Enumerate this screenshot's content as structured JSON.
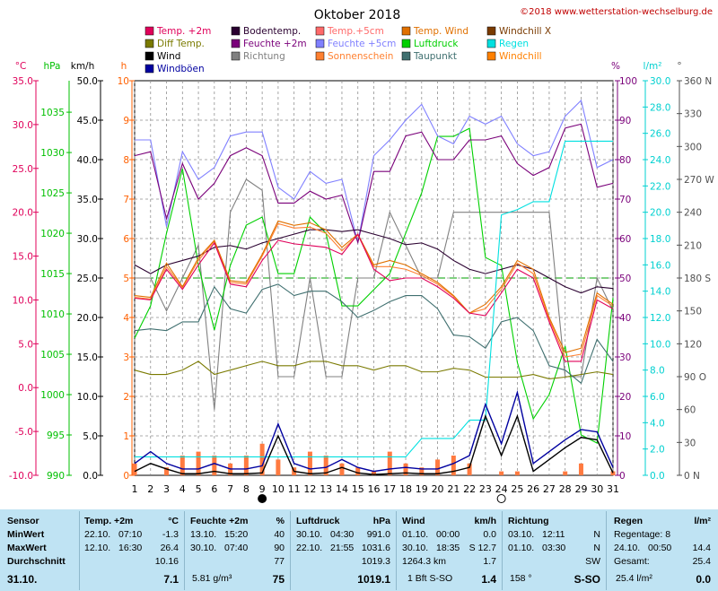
{
  "header": {
    "title": "Oktober 2018",
    "copyright": "©2018 www.wetterstation-wechselburg.de"
  },
  "legend": [
    {
      "label": "Temp. +2m",
      "color": "#e0005a"
    },
    {
      "label": "Bodentemp.",
      "color": "#2a0030"
    },
    {
      "label": "Temp.+5cm",
      "color": "#ff6a6a"
    },
    {
      "label": "Temp. Wind",
      "color": "#e07000"
    },
    {
      "label": "Windchill X",
      "color": "#7a3a00"
    },
    {
      "label": "Diff Temp.",
      "color": "#7a7a00"
    },
    {
      "label": "Feuchte +2m",
      "color": "#7a007a"
    },
    {
      "label": "Feuchte +5cm",
      "color": "#8080ff"
    },
    {
      "label": "Luftdruck",
      "color": "#00d000"
    },
    {
      "label": "Regen",
      "color": "#00e0e0"
    },
    {
      "label": "Wind",
      "color": "#000000"
    },
    {
      "label": "Richtung",
      "color": "#808080"
    },
    {
      "label": "Sonnenschein",
      "color": "#ff8030"
    },
    {
      "label": "Taupunkt",
      "color": "#407070"
    },
    {
      "label": "Windchill",
      "color": "#ff8000"
    },
    {
      "label": "Windböen",
      "color": "#0000a0"
    }
  ],
  "axes": {
    "temp": {
      "unit": "°C",
      "ticks": [
        "35.0",
        "30.0",
        "25.0",
        "20.0",
        "15.0",
        "10.0",
        "5.0",
        "0.0",
        "-5.0",
        "-10.0"
      ],
      "color": "#e0005a"
    },
    "press": {
      "unit": "hPa",
      "ticks": [
        "1035",
        "1030",
        "1025",
        "1020",
        "1015",
        "1010",
        "1005",
        "1000",
        "995",
        "990"
      ],
      "color": "#00c000"
    },
    "wind": {
      "unit": "km/h",
      "ticks": [
        "50.0",
        "45.0",
        "40.0",
        "35.0",
        "30.0",
        "25.0",
        "20.0",
        "15.0",
        "10.0",
        "5.0",
        "0.0"
      ],
      "color": "#000000"
    },
    "sun": {
      "unit": "h",
      "ticks": [
        "10",
        "9",
        "8",
        "7",
        "6",
        "5",
        "4",
        "3",
        "2",
        "1",
        "0"
      ],
      "color": "#ff6000"
    },
    "hum": {
      "unit": "%",
      "ticks": [
        "100",
        "90",
        "80",
        "70",
        "60",
        "50",
        "40",
        "30",
        "20",
        "10",
        "0"
      ],
      "color": "#7a007a"
    },
    "rain": {
      "unit": "l/m²",
      "ticks": [
        "30.0",
        "28.0",
        "26.0",
        "24.0",
        "22.0",
        "20.0",
        "18.0",
        "16.0",
        "14.0",
        "12.0",
        "10.0",
        "8.0",
        "6.0",
        "4.0",
        "2.0",
        "0.0"
      ],
      "color": "#00d0d0"
    },
    "dir": {
      "unit": "°",
      "ticks": [
        "360 N",
        "330",
        "300",
        "270 W",
        "240",
        "210",
        "180 S",
        "150",
        "120",
        "90 O",
        "60",
        "30",
        "0 N"
      ],
      "color": "#505050"
    },
    "days": [
      "1",
      "2",
      "3",
      "4",
      "5",
      "6",
      "7",
      "8",
      "9",
      "10",
      "11",
      "12",
      "13",
      "14",
      "15",
      "16",
      "17",
      "18",
      "19",
      "20",
      "21",
      "22",
      "23",
      "24",
      "25",
      "26",
      "27",
      "28",
      "29",
      "30",
      "31"
    ]
  },
  "chart_data": {
    "type": "line",
    "title": "Oktober 2018",
    "x": [
      1,
      2,
      3,
      4,
      5,
      6,
      7,
      8,
      9,
      10,
      11,
      12,
      13,
      14,
      15,
      16,
      17,
      18,
      19,
      20,
      21,
      22,
      23,
      24,
      25,
      26,
      27,
      28,
      29,
      30,
      31
    ],
    "series": [
      {
        "name": "Temp. +2m",
        "axis": "temp",
        "values": [
          10.2,
          10.0,
          13.5,
          11.2,
          14.0,
          16.5,
          11.8,
          11.5,
          14.5,
          16.8,
          16.4,
          16.2,
          16.0,
          15.2,
          17.5,
          13.5,
          12.2,
          12.5,
          12.5,
          11.5,
          10.2,
          8.5,
          8.2,
          10.8,
          13.5,
          12.5,
          7.5,
          3.0,
          3.0,
          10.0,
          9.0
        ]
      },
      {
        "name": "Bodentemp.",
        "axis": "temp",
        "values": [
          14.0,
          13.0,
          14.0,
          14.5,
          15.0,
          16.0,
          16.2,
          15.8,
          16.5,
          17.0,
          17.5,
          18.0,
          18.0,
          17.8,
          18.0,
          17.5,
          17.0,
          16.3,
          16.5,
          15.8,
          14.5,
          13.5,
          13.0,
          13.5,
          14.0,
          13.5,
          12.5,
          11.5,
          10.8,
          11.5,
          11.3
        ]
      },
      {
        "name": "Temp. Wind",
        "axis": "temp",
        "values": [
          10.5,
          10.3,
          14.2,
          11.5,
          14.8,
          16.8,
          12.2,
          12.0,
          15.2,
          19.0,
          18.5,
          18.8,
          18.0,
          16.0,
          17.5,
          14.0,
          14.5,
          14.0,
          13.0,
          12.0,
          10.5,
          8.5,
          9.5,
          11.5,
          14.5,
          13.5,
          8.0,
          4.0,
          4.5,
          10.8,
          9.5
        ]
      },
      {
        "name": "Sonnenschein",
        "axis": "temp",
        "values": [
          10.3,
          10.1,
          13.8,
          11.4,
          14.5,
          16.7,
          12.0,
          11.8,
          15.0,
          18.7,
          18.2,
          18.3,
          17.6,
          15.6,
          17.4,
          13.8,
          13.8,
          13.5,
          12.8,
          11.8,
          10.4,
          8.5,
          9.0,
          11.2,
          14.2,
          13.0,
          7.8,
          3.5,
          3.8,
          10.5,
          9.3
        ]
      },
      {
        "name": "Taupunkt",
        "axis": "temp",
        "values": [
          6.5,
          6.7,
          6.5,
          7.5,
          7.5,
          11.5,
          9.0,
          8.5,
          11.2,
          11.8,
          10.5,
          11.0,
          11.0,
          9.8,
          8.0,
          8.8,
          9.8,
          10.5,
          10.5,
          9.0,
          6.0,
          5.8,
          4.5,
          7.5,
          8.0,
          6.5,
          2.5,
          2.0,
          0.5,
          5.5,
          3.0
        ]
      },
      {
        "name": "Feuchte +2m",
        "axis": "hum",
        "values": [
          81,
          82,
          65,
          79,
          70,
          74,
          81,
          83,
          81,
          69,
          69,
          72,
          70,
          71,
          59,
          77,
          77,
          86,
          87,
          80,
          80,
          85,
          85,
          86,
          79,
          76,
          78,
          88,
          89,
          73,
          74
        ]
      },
      {
        "name": "Feuchte +5cm",
        "axis": "hum",
        "values": [
          85,
          85,
          63,
          82,
          75,
          78,
          86,
          87,
          87,
          73,
          70,
          77,
          74,
          75,
          59,
          81,
          85,
          90,
          94,
          86,
          84,
          91,
          89,
          91,
          84,
          81,
          82,
          91,
          95,
          78,
          80
        ]
      },
      {
        "name": "Luftdruck",
        "axis": "press",
        "values": [
          1007,
          1011,
          1020,
          1028,
          1016,
          1008,
          1016,
          1021,
          1022,
          1015,
          1015,
          1022,
          1020,
          1011,
          1011,
          1013,
          1015,
          1020,
          1025,
          1032,
          1032,
          1033,
          1017,
          1016,
          1004,
          997,
          1000,
          1006,
          995,
          994,
          1012
        ]
      },
      {
        "name": "Regen",
        "axis": "rain",
        "values": [
          1.4,
          1.4,
          1.4,
          1.4,
          1.4,
          1.4,
          1.4,
          1.4,
          1.4,
          1.4,
          1.4,
          1.4,
          1.4,
          1.4,
          1.4,
          1.4,
          1.4,
          1.4,
          2.8,
          2.8,
          2.8,
          4.2,
          4.2,
          19.8,
          20.2,
          20.8,
          20.8,
          25.4,
          25.4,
          25.4,
          25.4
        ]
      },
      {
        "name": "Wind",
        "axis": "wind",
        "values": [
          0.5,
          1.5,
          0.8,
          0.2,
          0.2,
          0.5,
          0.2,
          0.2,
          0.3,
          5.0,
          0.5,
          0.2,
          0.3,
          1.0,
          0.3,
          0.1,
          0.2,
          0.3,
          0.2,
          0.2,
          0.5,
          1.0,
          7.5,
          2.5,
          7.5,
          0.5,
          2.0,
          3.5,
          4.8,
          4.5,
          0.3
        ]
      },
      {
        "name": "Windböen",
        "axis": "wind",
        "values": [
          1.5,
          3.0,
          1.5,
          0.8,
          0.8,
          1.5,
          0.8,
          0.8,
          1.2,
          6.5,
          1.5,
          0.8,
          1.0,
          2.0,
          1.0,
          0.5,
          0.8,
          1.0,
          0.8,
          0.8,
          1.5,
          2.5,
          9.0,
          4.0,
          10.5,
          1.5,
          3.0,
          4.5,
          5.8,
          5.5,
          1.0
        ]
      },
      {
        "name": "Richtung",
        "axis": "dir",
        "values": [
          180,
          180,
          150,
          180,
          210,
          60,
          240,
          270,
          260,
          90,
          90,
          180,
          90,
          90,
          180,
          180,
          240,
          210,
          180,
          180,
          240,
          240,
          240,
          240,
          240,
          240,
          240,
          90,
          90,
          180,
          150
        ]
      },
      {
        "name": "Diff Temp.",
        "axis": "temp",
        "values": [
          2.0,
          1.5,
          1.5,
          2.0,
          3.0,
          1.5,
          2.0,
          2.5,
          3.0,
          2.5,
          2.5,
          3.0,
          3.0,
          2.5,
          2.5,
          2.0,
          2.5,
          2.5,
          1.8,
          1.8,
          2.2,
          2.0,
          1.2,
          1.2,
          1.2,
          1.5,
          1.0,
          1.2,
          1.5,
          1.8,
          1.5
        ]
      }
    ],
    "sunshine_hours": [
      0.3,
      0,
      0.2,
      0.5,
      0.6,
      0.5,
      0.3,
      0.5,
      0.8,
      0.4,
      0.2,
      0.6,
      0.5,
      0.3,
      0.2,
      0.1,
      0.6,
      0.3,
      0.2,
      0.4,
      0.5,
      0.3,
      0,
      0.1,
      0.1,
      0,
      0,
      0.1,
      0.3,
      0,
      0.1
    ],
    "reference_lines": {
      "humidity_50": 50
    },
    "moon_phases": [
      {
        "day": 9,
        "phase": "new"
      },
      {
        "day": 24,
        "phase": "full"
      }
    ]
  },
  "summary": {
    "sensor": {
      "title": "Sensor",
      "rows": [
        "MinWert",
        "MaxWert",
        "Durchschnitt",
        "31.10."
      ]
    },
    "temp": {
      "title": "Temp. +2m",
      "unit": "°C",
      "min_date": "22.10.",
      "min_time": "07:10",
      "min": "-1.3",
      "max_date": "12.10.",
      "max_time": "16:30",
      "max": "26.4",
      "avg": "10.16",
      "current": "7.1"
    },
    "hum": {
      "title": "Feuchte +2m",
      "unit": "%",
      "min_date": "13.10.",
      "min_time": "15:20",
      "min": "40",
      "max_date": "30.10.",
      "max_time": "07:40",
      "max": "90",
      "avg": "77",
      "extra": "5.81 g/m³",
      "current": "75"
    },
    "press": {
      "title": "Luftdruck",
      "unit": "hPa",
      "min_date": "30.10.",
      "min_time": "04:30",
      "min": "991.0",
      "max_date": "22.10.",
      "max_time": "21:55",
      "max": "1031.6",
      "avg": "1019.3",
      "current": "1019.1"
    },
    "wind": {
      "title": "Wind",
      "unit": "km/h",
      "min_date": "01.10.",
      "min_time": "00:00",
      "min": "0.0",
      "max_date": "30.10.",
      "max_time": "18:35",
      "max": "S 12.7",
      "avg_km": "1264.3 km",
      "avg": "1.7",
      "current_bft": "1 Bft S-SO",
      "current": "1.4"
    },
    "dir": {
      "title": "Richtung",
      "min_date": "03.10.",
      "min_time": "12:11",
      "min": "N",
      "max_date": "01.10.",
      "max_time": "03:30",
      "max": "N",
      "avg": "SW",
      "current_deg": "158 °",
      "current": "S-SO"
    },
    "rain": {
      "title": "Regen",
      "unit": "l/m²",
      "days": "Regentage: 8",
      "max_date": "24.10.",
      "max_time": "00:50",
      "max": "14.4",
      "total_label": "Gesamt:",
      "total": "25.4",
      "current_small": "25.4 l/m²",
      "current": "0.0"
    }
  }
}
